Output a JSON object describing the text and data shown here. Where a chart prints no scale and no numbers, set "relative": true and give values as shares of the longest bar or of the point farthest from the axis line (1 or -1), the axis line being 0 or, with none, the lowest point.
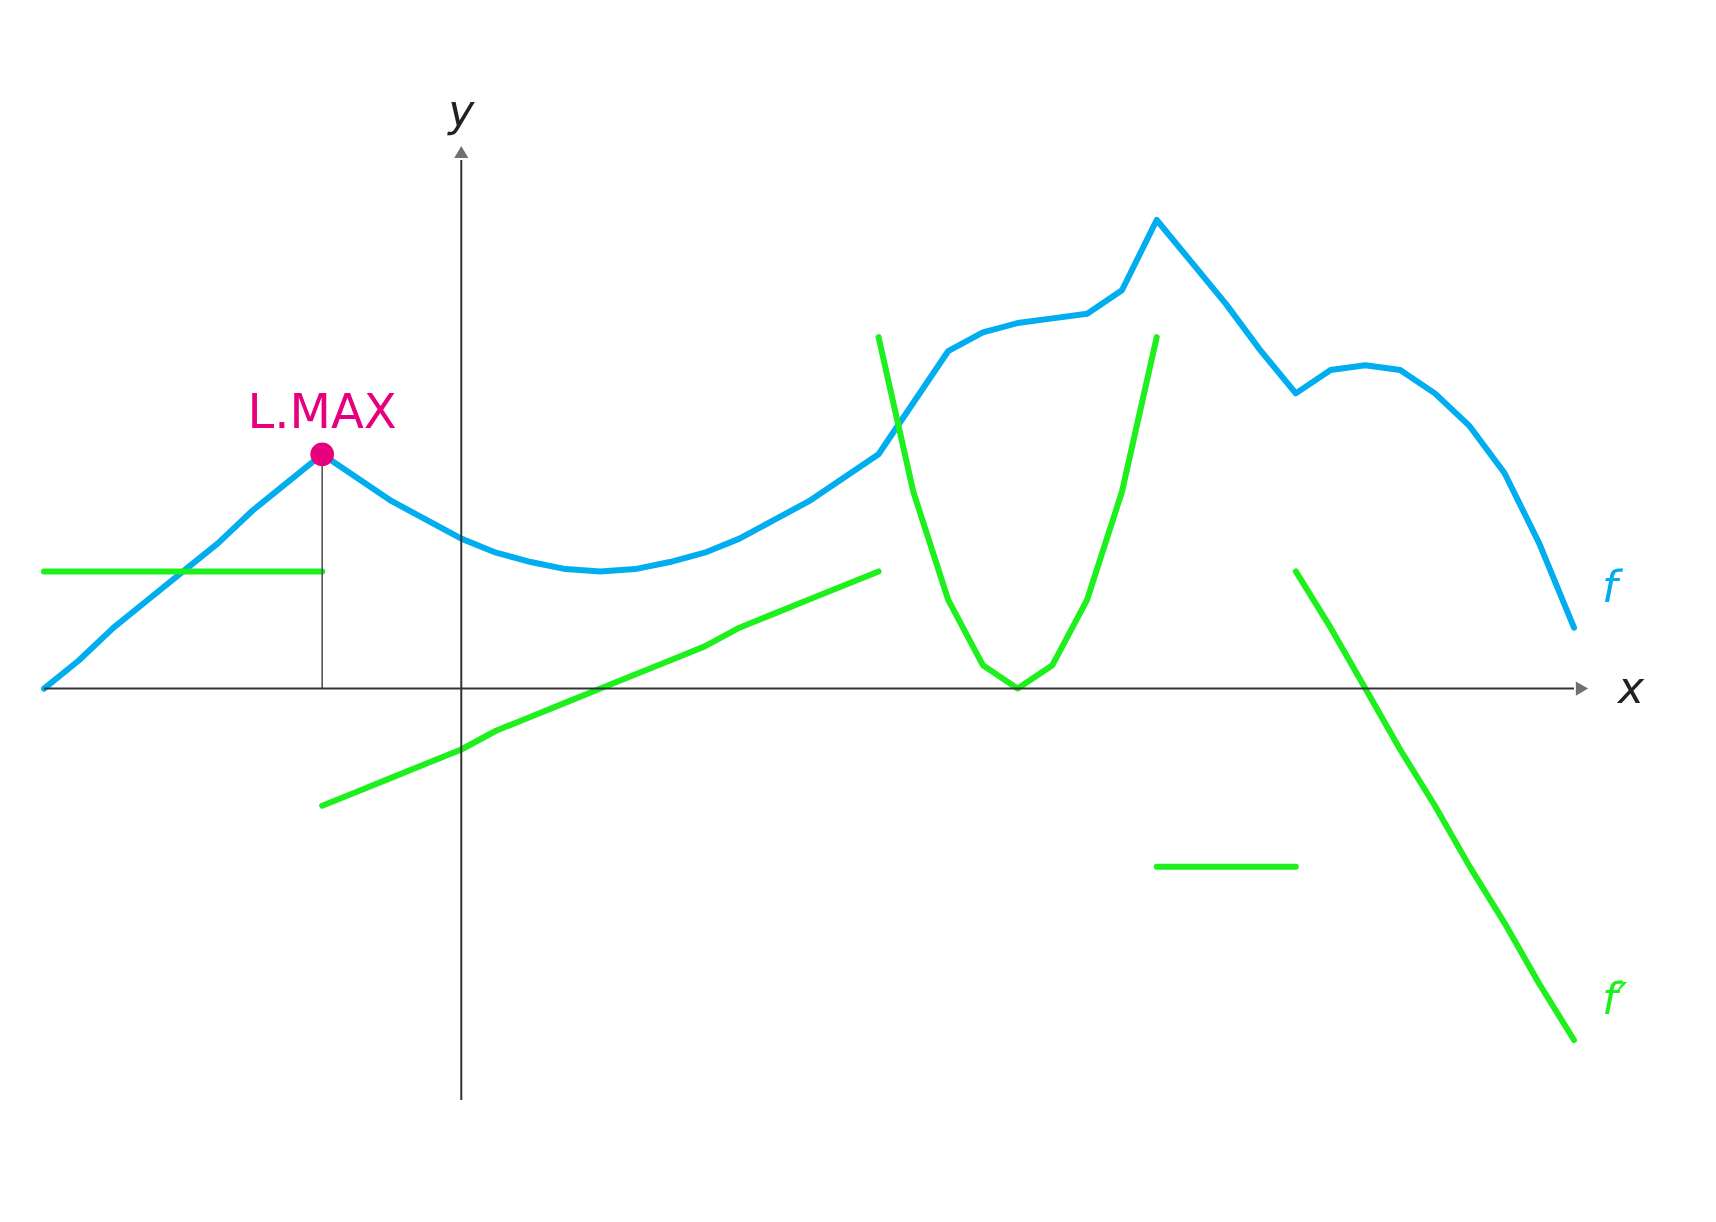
{
  "chart_data": {
    "type": "line",
    "relative": true,
    "tick_labels": false,
    "xlabel": "x",
    "ylabel": "y",
    "categories": [
      null,
      null,
      null,
      null,
      null,
      null,
      null,
      null,
      null,
      null,
      null,
      null,
      null,
      null,
      null,
      null,
      null,
      null,
      null,
      null,
      null,
      null,
      null,
      null,
      null,
      null,
      null,
      null,
      null,
      null,
      null,
      null,
      null,
      null,
      null,
      null,
      null,
      null,
      null,
      null,
      null,
      null,
      null,
      null,
      null
    ],
    "series": [
      {
        "name": "f",
        "color": "#00aeef",
        "values": [
          0,
          0.06,
          0.13,
          0.19,
          0.25,
          0.31,
          0.38,
          0.44,
          0.5,
          0.45,
          0.4,
          0.36,
          0.32,
          0.29,
          0.27,
          0.255,
          0.25,
          0.255,
          0.27,
          0.29,
          0.32,
          0.36,
          0.4,
          0.45,
          0.5,
          0.61,
          0.72,
          0.76,
          0.78,
          0.79,
          0.8,
          0.85,
          1,
          0.91,
          0.82,
          0.72,
          0.63,
          0.68,
          0.69,
          0.68,
          0.63,
          0.56,
          0.46,
          0.31,
          0.13
        ]
      },
      {
        "color": "#1ef01e",
        "values": [
          0.25,
          0.25,
          0.25,
          0.25,
          0.25,
          0.25,
          0.25,
          0.25,
          0.25,
          null,
          null,
          null,
          null,
          null,
          null,
          null,
          null,
          null,
          null,
          null,
          null,
          null,
          null,
          null,
          null,
          null,
          null,
          null,
          null,
          null,
          null,
          null,
          null,
          null,
          null,
          null,
          null,
          null,
          null,
          null,
          null,
          null,
          null,
          null,
          null
        ]
      },
      {
        "color": "#1ef01e",
        "values": [
          null,
          null,
          null,
          null,
          null,
          null,
          null,
          null,
          -0.25,
          -0.22,
          -0.19,
          -0.16,
          -0.13,
          -0.09,
          -0.06,
          -0.03,
          0,
          0.03,
          0.06,
          0.09,
          0.13,
          0.16,
          0.19,
          0.22,
          0.25,
          null,
          null,
          null,
          null,
          null,
          null,
          null,
          null,
          null,
          null,
          null,
          null,
          null,
          null,
          null,
          null,
          null,
          null,
          null,
          null
        ]
      },
      {
        "color": "#1ef01e",
        "values": [
          null,
          null,
          null,
          null,
          null,
          null,
          null,
          null,
          null,
          null,
          null,
          null,
          null,
          null,
          null,
          null,
          null,
          null,
          null,
          null,
          null,
          null,
          null,
          null,
          0.75,
          0.42,
          0.19,
          0.05,
          0,
          0.05,
          0.19,
          0.42,
          0.75,
          null,
          null,
          null,
          null,
          null,
          null,
          null,
          null,
          null,
          null,
          null,
          null
        ]
      },
      {
        "color": "#1ef01e",
        "values": [
          null,
          null,
          null,
          null,
          null,
          null,
          null,
          null,
          null,
          null,
          null,
          null,
          null,
          null,
          null,
          null,
          null,
          null,
          null,
          null,
          null,
          null,
          null,
          null,
          null,
          null,
          null,
          null,
          null,
          null,
          null,
          null,
          -0.38,
          -0.38,
          -0.38,
          -0.38,
          -0.38,
          null,
          null,
          null,
          null,
          null,
          null,
          null,
          null
        ]
      },
      {
        "name": "f′",
        "color": "#1ef01e",
        "values": [
          null,
          null,
          null,
          null,
          null,
          null,
          null,
          null,
          null,
          null,
          null,
          null,
          null,
          null,
          null,
          null,
          null,
          null,
          null,
          null,
          null,
          null,
          null,
          null,
          null,
          null,
          null,
          null,
          null,
          null,
          null,
          null,
          null,
          null,
          null,
          null,
          0.25,
          0.13,
          0,
          -0.13,
          -0.25,
          -0.38,
          -0.5,
          -0.63,
          -0.75
        ]
      },
      {
        "marker": "circle",
        "color": "#e6007e",
        "values": [
          null,
          null,
          null,
          null,
          null,
          null,
          null,
          null,
          0.5,
          null,
          null,
          null,
          null,
          null,
          null,
          null,
          null,
          null,
          null,
          null,
          null,
          null,
          null,
          null,
          null,
          null,
          null,
          null,
          null,
          null,
          null,
          null,
          null,
          null,
          null,
          null,
          null,
          null,
          null,
          null,
          null,
          null,
          null,
          null,
          null
        ]
      }
    ],
    "annotations": [
      "L.MAX"
    ]
  }
}
